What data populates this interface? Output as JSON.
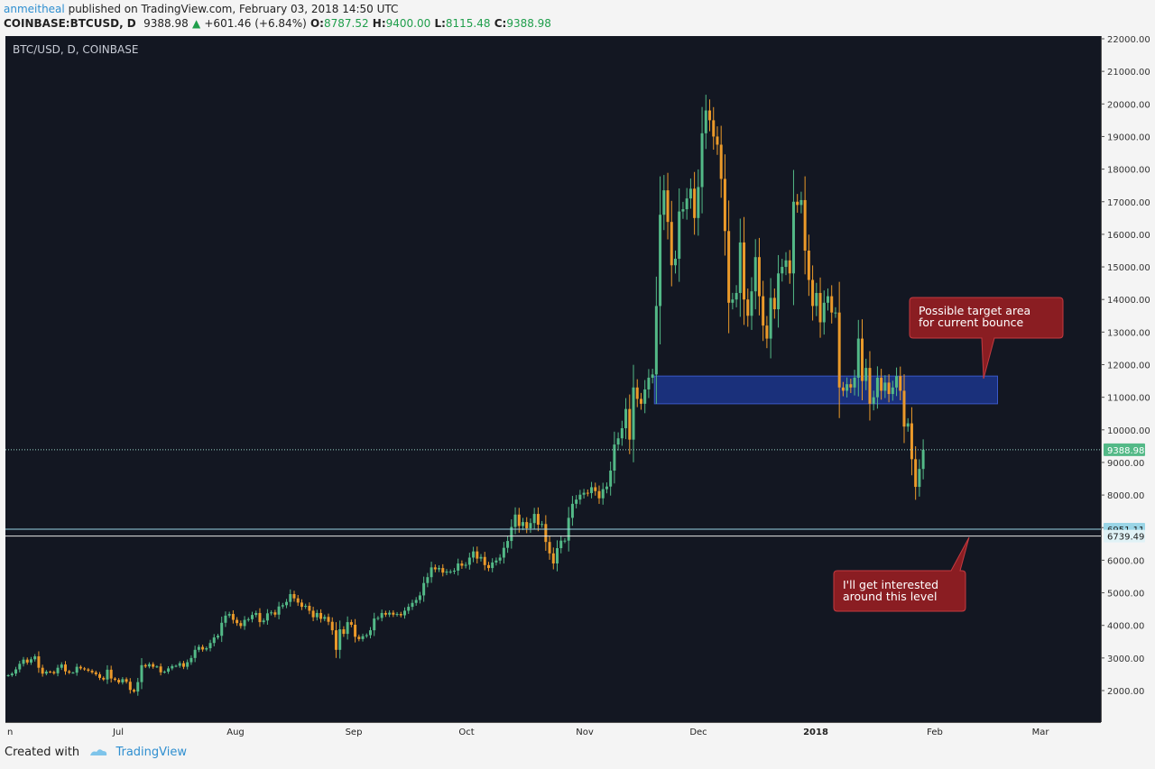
{
  "header": {
    "author": "anmeitheal",
    "published_text": "published on TradingView.com, February 03, 2018 14:50 UTC",
    "symbol": "COINBASE:BTCUSD, D",
    "last": "9388.98",
    "change": "+601.46 (+6.84%)",
    "o_label": "O:",
    "o_value": "8787.52",
    "h_label": "H:",
    "h_value": "9400.00",
    "l_label": "L:",
    "l_value": "8115.48",
    "c_label": "C:",
    "c_value": "9388.98"
  },
  "footer": {
    "created_with": "Created with",
    "brand": "TradingView"
  },
  "colors": {
    "up": "#53b987",
    "down": "#eb9a2a",
    "bg": "#131722",
    "zone": "#1e3a9a",
    "callout": "#8a1d22",
    "level_line": "#9ad5e6"
  },
  "chart_data": {
    "type": "candlestick",
    "title": "BTC/USD, D, COINBASE",
    "x_labels": [
      "n",
      "Jul",
      "Aug",
      "Sep",
      "Oct",
      "Nov",
      "Dec",
      "2018",
      "Feb",
      "Mar"
    ],
    "y_ticks": [
      "2000.00",
      "3000.00",
      "4000.00",
      "5000.00",
      "6000.00",
      "7000.00",
      "8000.00",
      "9000.00",
      "10000.00",
      "11000.00",
      "12000.00",
      "13000.00",
      "14000.00",
      "15000.00",
      "16000.00",
      "17000.00",
      "18000.00",
      "19000.00",
      "20000.00",
      "21000.00",
      "22000.00"
    ],
    "ylim": [
      1000,
      22300
    ],
    "grid": false,
    "price_labels": {
      "current": "9388.98",
      "level_1": "6951.11",
      "level_2": "6739.49"
    },
    "levels": [
      6951.11,
      6739.49,
      9388.98
    ],
    "target_zone": {
      "low": 10800,
      "high": 11650,
      "x_start": "2017-11-26",
      "x_end": "2018-02-24"
    },
    "annotations": [
      {
        "text": [
          "Possible target area",
          "for current bounce"
        ]
      },
      {
        "text": [
          "I'll get interested",
          "around this level"
        ]
      }
    ],
    "x_start": "2017-06-09",
    "candles_close": [
      2470,
      2520,
      2650,
      2820,
      2950,
      2860,
      2960,
      3050,
      2700,
      2520,
      2580,
      2570,
      2530,
      2700,
      2800,
      2590,
      2550,
      2550,
      2730,
      2680,
      2650,
      2610,
      2560,
      2500,
      2390,
      2340,
      2640,
      2370,
      2330,
      2250,
      2350,
      2270,
      2020,
      1970,
      2260,
      2780,
      2740,
      2810,
      2730,
      2740,
      2560,
      2580,
      2680,
      2750,
      2760,
      2840,
      2730,
      2870,
      3000,
      3250,
      3340,
      3260,
      3300,
      3460,
      3630,
      3680,
      4080,
      4300,
      4350,
      4170,
      4070,
      3980,
      4170,
      4190,
      4320,
      4380,
      4100,
      4150,
      4370,
      4400,
      4330,
      4580,
      4620,
      4720,
      4960,
      4830,
      4700,
      4570,
      4600,
      4450,
      4250,
      4380,
      4200,
      4260,
      4110,
      3850,
      3250,
      3880,
      3740,
      4100,
      4020,
      3650,
      3580,
      3670,
      3700,
      3850,
      4210,
      4230,
      4380,
      4330,
      4390,
      4330,
      4350,
      4310,
      4450,
      4570,
      4690,
      4780,
      4920,
      5300,
      5480,
      5780,
      5720,
      5760,
      5620,
      5650,
      5650,
      5680,
      5900,
      5830,
      5860,
      6080,
      6270,
      6050,
      6100,
      5850,
      5760,
      5930,
      5990,
      6080,
      6380,
      6590,
      7020,
      7400,
      7050,
      7170,
      6980,
      7140,
      7420,
      7090,
      7110,
      6560,
      6210,
      5900,
      6370,
      6600,
      6600,
      7300,
      7730,
      7860,
      8010,
      8070,
      8060,
      8240,
      8120,
      7900,
      8180,
      8260,
      8750,
      9550,
      9740,
      10050,
      10640,
      9700,
      11300,
      10950,
      10800,
      11240,
      11600,
      11700,
      13800,
      16600,
      17350,
      16380,
      15050,
      15250,
      16700,
      16770,
      17100,
      17400,
      16500,
      17450,
      19100,
      19800,
      19500,
      19000,
      18750,
      17700,
      16100,
      13900,
      14000,
      14200,
      15750,
      14000,
      13500,
      14250,
      15300,
      14100,
      13200,
      12800,
      14050,
      13700,
      14800,
      15000,
      15200,
      14800,
      17000,
      16900,
      17050,
      15500,
      14600,
      13800,
      14200,
      13300,
      13900,
      14100,
      13600,
      13600,
      11300,
      11200,
      11400,
      11300,
      11600,
      12800,
      11500,
      11900,
      10800,
      11000,
      11600,
      11200,
      11450,
      11100,
      11300,
      11650,
      11200,
      10100,
      10200,
      9100,
      8250,
      8800,
      9390
    ]
  }
}
